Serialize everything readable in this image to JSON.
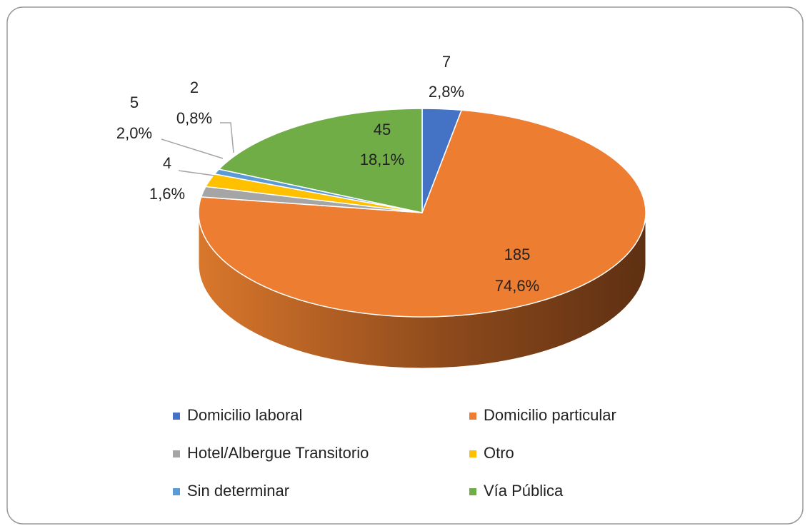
{
  "chart_data": {
    "type": "pie",
    "categories": [
      "Domicilio laboral",
      "Domicilio particular",
      "Hotel/Albergue Transitorio",
      "Otro",
      "Sin determinar",
      "Vía Pública"
    ],
    "values": [
      7,
      185,
      4,
      5,
      2,
      45
    ],
    "shares": [
      2.8,
      74.6,
      1.6,
      2.0,
      0.8,
      18.1
    ],
    "share_labels": [
      "2,8%",
      "74,6%",
      "1,6%",
      "2,0%",
      "0,8%",
      "18,1%"
    ],
    "colors": [
      "#4472c4",
      "#ed7d31",
      "#a5a5a5",
      "#ffc000",
      "#5b9bd5",
      "#70ad47"
    ],
    "legend": "bottom"
  }
}
